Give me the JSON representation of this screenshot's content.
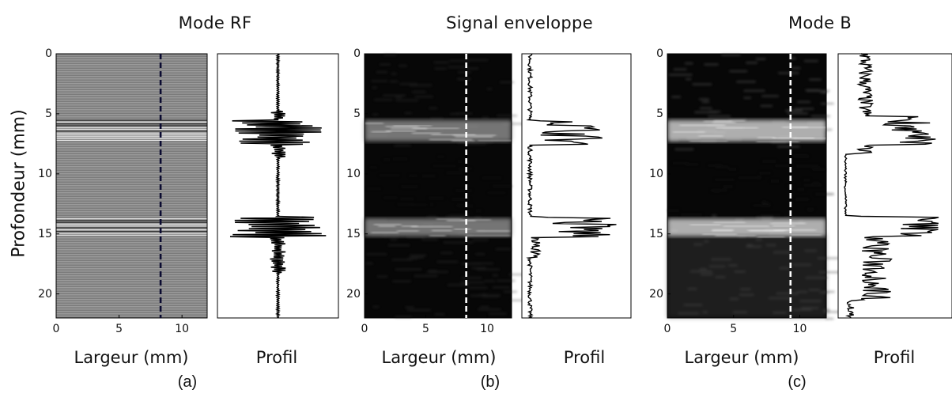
{
  "figure": {
    "ylabel": "Profondeur (mm)",
    "panels": [
      {
        "id": "a",
        "tag": "(a)",
        "title": "Mode RF",
        "xlabel": "Largeur (mm)",
        "profile_label": "Profil",
        "style": "rf"
      },
      {
        "id": "b",
        "tag": "(b)",
        "title": "Signal enveloppe",
        "xlabel": "Largeur (mm)",
        "profile_label": "Profil",
        "style": "env"
      },
      {
        "id": "c",
        "tag": "(c)",
        "title": "Mode B",
        "xlabel": "Largeur (mm)",
        "profile_label": "Profil",
        "style": "bmode"
      }
    ],
    "y_ticks": [
      "0",
      "5",
      "10",
      "15",
      "20"
    ],
    "x_ticks": [
      "0",
      "5",
      "10"
    ],
    "x_range_mm": [
      0,
      12
    ],
    "y_range_mm": [
      0,
      22
    ],
    "scanline_x_mm": [
      8.3,
      8.3,
      9.3
    ],
    "bright_layers_mm": [
      [
        5.5,
        7.3
      ],
      [
        13.7,
        15.2
      ]
    ],
    "colors": {
      "rf_bg": "#8a8a8a",
      "dark_bg": "#070707",
      "line": "#000000",
      "dash_dark": "#0a0a30",
      "dash_light": "#ffffff"
    }
  }
}
